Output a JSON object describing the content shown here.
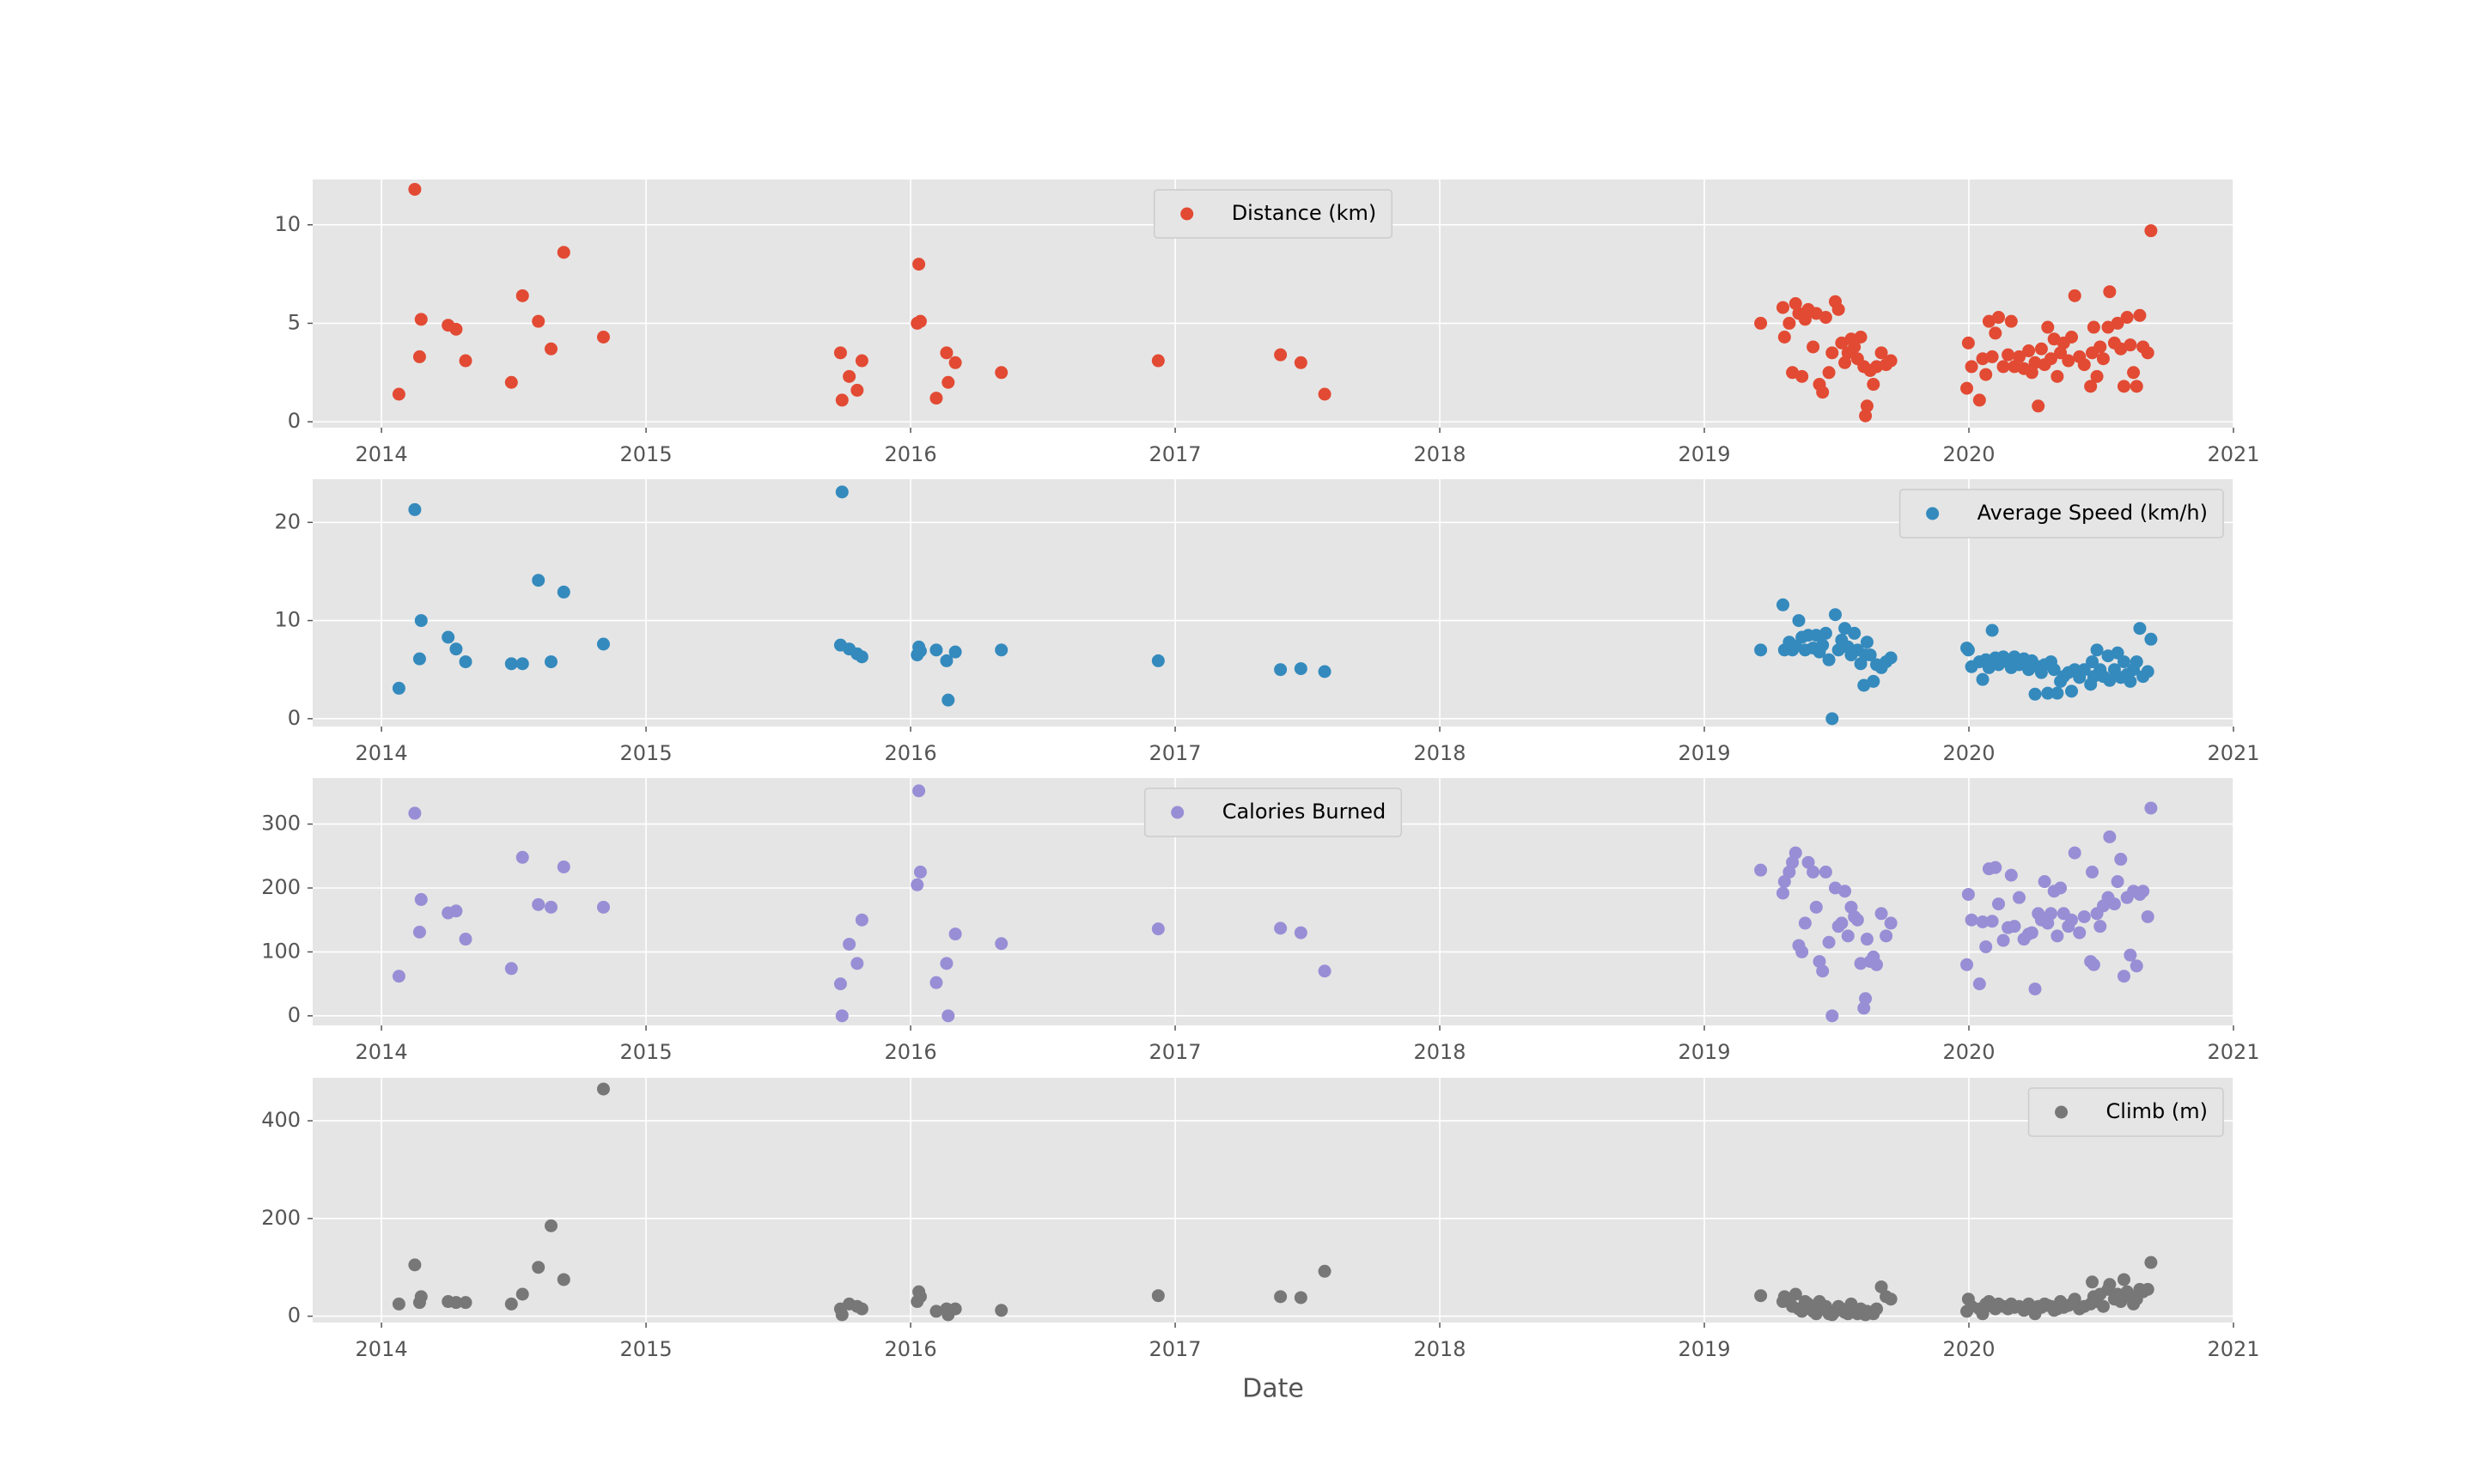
{
  "chart_data": [
    {
      "type": "scatter",
      "xlim": [
        2013.74,
        2021.0
      ],
      "xticks": [
        2014,
        2015,
        2016,
        2017,
        2018,
        2019,
        2020,
        2021
      ],
      "ylim": [
        -0.3,
        12.3
      ],
      "yticks": [
        0,
        5,
        10
      ],
      "grid": true,
      "legend": "upper center",
      "x": [
        2014.066,
        2014.126,
        2014.144,
        2014.15,
        2014.252,
        2014.282,
        2014.318,
        2014.491,
        2014.533,
        2014.593,
        2014.641,
        2014.689,
        2014.839,
        2015.735,
        2015.741,
        2015.768,
        2015.798,
        2015.816,
        2016.025,
        2016.031,
        2016.037,
        2016.097,
        2016.136,
        2016.142,
        2016.169,
        2016.343,
        2016.936,
        2017.398,
        2017.475,
        2017.565,
        2019.213,
        2019.297,
        2019.303,
        2019.321,
        2019.333,
        2019.345,
        2019.357,
        2019.369,
        2019.381,
        2019.393,
        2019.411,
        2019.423,
        2019.435,
        2019.447,
        2019.459,
        2019.471,
        2019.483,
        2019.495,
        2019.507,
        2019.519,
        2019.531,
        2019.543,
        2019.555,
        2019.567,
        2019.579,
        2019.591,
        2019.603,
        2019.609,
        2019.615,
        2019.627,
        2019.639,
        2019.651,
        2019.669,
        2019.687,
        2019.705,
        2019.992,
        2019.998,
        2020.01,
        2020.04,
        2020.052,
        2020.064,
        2020.076,
        2020.088,
        2020.1,
        2020.112,
        2020.13,
        2020.148,
        2020.16,
        2020.172,
        2020.19,
        2020.208,
        2020.226,
        2020.238,
        2020.25,
        2020.262,
        2020.274,
        2020.286,
        2020.298,
        2020.31,
        2020.322,
        2020.334,
        2020.346,
        2020.358,
        2020.376,
        2020.388,
        2020.4,
        2020.418,
        2020.436,
        2020.46,
        2020.466,
        2020.472,
        2020.484,
        2020.496,
        2020.508,
        2020.526,
        2020.532,
        2020.55,
        2020.562,
        2020.574,
        2020.586,
        2020.598,
        2020.61,
        2020.622,
        2020.634,
        2020.646,
        2020.658,
        2020.676,
        2020.688
      ],
      "series": [
        {
          "name": "Distance (km)",
          "color": "#E24A33",
          "values": [
            1.4,
            11.8,
            3.3,
            5.2,
            4.9,
            4.7,
            3.1,
            2.0,
            6.4,
            5.1,
            3.7,
            8.6,
            4.3,
            3.5,
            1.1,
            2.3,
            1.6,
            3.1,
            5.0,
            8.0,
            5.1,
            1.2,
            3.5,
            2.0,
            3.0,
            2.5,
            3.1,
            3.4,
            3.0,
            1.4,
            5.0,
            5.8,
            4.3,
            5.0,
            2.5,
            6.0,
            5.5,
            2.3,
            5.2,
            5.7,
            3.8,
            5.5,
            1.9,
            1.5,
            5.3,
            2.5,
            3.5,
            6.1,
            5.7,
            4.0,
            3.0,
            3.5,
            4.2,
            3.8,
            3.2,
            4.3,
            2.8,
            0.3,
            0.8,
            2.6,
            1.9,
            2.8,
            3.5,
            2.9,
            3.1,
            1.7,
            4.0,
            2.8,
            1.1,
            3.2,
            2.4,
            5.1,
            3.3,
            4.5,
            5.3,
            2.8,
            3.4,
            5.1,
            2.8,
            3.3,
            2.7,
            3.6,
            2.5,
            3.0,
            0.8,
            3.7,
            2.9,
            4.8,
            3.2,
            4.2,
            2.3,
            3.5,
            4.0,
            3.1,
            4.3,
            6.4,
            3.3,
            2.9,
            1.8,
            3.5,
            4.8,
            2.3,
            3.8,
            3.2,
            4.8,
            6.6,
            4.0,
            5.0,
            3.7,
            1.8,
            5.3,
            3.9,
            2.5,
            1.8,
            5.4,
            3.8,
            3.5,
            9.7
          ]
        }
      ]
    },
    {
      "type": "scatter",
      "xlim": [
        2013.74,
        2021.0
      ],
      "xticks": [
        2014,
        2015,
        2016,
        2017,
        2018,
        2019,
        2020,
        2021
      ],
      "ylim": [
        -0.8,
        24.4
      ],
      "yticks": [
        0,
        10,
        20
      ],
      "grid": true,
      "legend": "upper right",
      "x": [
        2014.066,
        2014.126,
        2014.144,
        2014.15,
        2014.252,
        2014.282,
        2014.318,
        2014.491,
        2014.533,
        2014.593,
        2014.641,
        2014.689,
        2014.839,
        2015.735,
        2015.741,
        2015.768,
        2015.798,
        2015.816,
        2016.025,
        2016.031,
        2016.037,
        2016.097,
        2016.136,
        2016.142,
        2016.169,
        2016.343,
        2016.936,
        2017.398,
        2017.475,
        2017.565,
        2019.213,
        2019.297,
        2019.303,
        2019.321,
        2019.333,
        2019.345,
        2019.357,
        2019.369,
        2019.381,
        2019.393,
        2019.411,
        2019.423,
        2019.435,
        2019.447,
        2019.459,
        2019.471,
        2019.483,
        2019.495,
        2019.507,
        2019.519,
        2019.531,
        2019.543,
        2019.555,
        2019.567,
        2019.579,
        2019.591,
        2019.603,
        2019.609,
        2019.615,
        2019.627,
        2019.639,
        2019.651,
        2019.669,
        2019.687,
        2019.705,
        2019.992,
        2019.998,
        2020.01,
        2020.04,
        2020.052,
        2020.064,
        2020.076,
        2020.088,
        2020.1,
        2020.112,
        2020.13,
        2020.148,
        2020.16,
        2020.172,
        2020.19,
        2020.208,
        2020.226,
        2020.238,
        2020.25,
        2020.262,
        2020.274,
        2020.286,
        2020.298,
        2020.31,
        2020.322,
        2020.334,
        2020.346,
        2020.358,
        2020.376,
        2020.388,
        2020.4,
        2020.418,
        2020.436,
        2020.46,
        2020.466,
        2020.472,
        2020.484,
        2020.496,
        2020.508,
        2020.526,
        2020.532,
        2020.55,
        2020.562,
        2020.574,
        2020.586,
        2020.598,
        2020.61,
        2020.622,
        2020.634,
        2020.646,
        2020.658,
        2020.676,
        2020.688
      ],
      "series": [
        {
          "name": "Average Speed (km/h)",
          "color": "#348ABD",
          "values": [
            3.1,
            21.3,
            6.1,
            10.0,
            8.3,
            7.1,
            5.8,
            5.6,
            5.6,
            14.1,
            5.8,
            12.9,
            7.6,
            7.5,
            23.1,
            7.1,
            6.6,
            6.3,
            6.5,
            7.3,
            6.9,
            7.0,
            5.9,
            1.9,
            6.8,
            7.0,
            5.9,
            5.0,
            5.1,
            4.8,
            7.0,
            11.6,
            7.0,
            7.8,
            7.0,
            7.4,
            10.0,
            8.3,
            7.0,
            8.5,
            7.2,
            8.5,
            6.8,
            7.5,
            8.7,
            6.0,
            0.0,
            10.6,
            7.0,
            8.0,
            9.2,
            7.3,
            6.5,
            8.7,
            7.0,
            5.6,
            3.4,
            6.5,
            7.8,
            6.5,
            3.8,
            5.5,
            5.2,
            5.8,
            6.2,
            7.2,
            7.0,
            5.3,
            5.8,
            4.0,
            6.0,
            5.2,
            9.0,
            6.2,
            5.5,
            6.3,
            5.8,
            5.2,
            6.3,
            5.5,
            6.1,
            5.0,
            5.9,
            2.5,
            5.3,
            4.7,
            5.5,
            2.6,
            5.8,
            5.0,
            2.6,
            3.8,
            4.3,
            4.7,
            2.8,
            5.0,
            4.2,
            5.0,
            3.5,
            5.8,
            4.3,
            7.0,
            5.0,
            4.3,
            6.4,
            3.9,
            5.0,
            6.7,
            4.2,
            5.8,
            4.5,
            3.8,
            5.0,
            5.8,
            9.2,
            4.3,
            4.8,
            8.1
          ]
        }
      ]
    },
    {
      "type": "scatter",
      "xlim": [
        2013.74,
        2021.0
      ],
      "xticks": [
        2014,
        2015,
        2016,
        2017,
        2018,
        2019,
        2020,
        2021
      ],
      "ylim": [
        -15,
        372
      ],
      "yticks": [
        0,
        100,
        200,
        300
      ],
      "grid": true,
      "legend": "upper center",
      "x": [
        2014.066,
        2014.126,
        2014.144,
        2014.15,
        2014.252,
        2014.282,
        2014.318,
        2014.491,
        2014.533,
        2014.593,
        2014.641,
        2014.689,
        2014.839,
        2015.735,
        2015.741,
        2015.768,
        2015.798,
        2015.816,
        2016.025,
        2016.031,
        2016.037,
        2016.097,
        2016.136,
        2016.142,
        2016.169,
        2016.343,
        2016.936,
        2017.398,
        2017.475,
        2017.565,
        2019.213,
        2019.297,
        2019.303,
        2019.321,
        2019.333,
        2019.345,
        2019.357,
        2019.369,
        2019.381,
        2019.393,
        2019.411,
        2019.423,
        2019.435,
        2019.447,
        2019.459,
        2019.471,
        2019.483,
        2019.495,
        2019.507,
        2019.519,
        2019.531,
        2019.543,
        2019.555,
        2019.567,
        2019.579,
        2019.591,
        2019.603,
        2019.609,
        2019.615,
        2019.627,
        2019.639,
        2019.651,
        2019.669,
        2019.687,
        2019.705,
        2019.992,
        2019.998,
        2020.01,
        2020.04,
        2020.052,
        2020.064,
        2020.076,
        2020.088,
        2020.1,
        2020.112,
        2020.13,
        2020.148,
        2020.16,
        2020.172,
        2020.19,
        2020.208,
        2020.226,
        2020.238,
        2020.25,
        2020.262,
        2020.274,
        2020.286,
        2020.298,
        2020.31,
        2020.322,
        2020.334,
        2020.346,
        2020.358,
        2020.376,
        2020.388,
        2020.4,
        2020.418,
        2020.436,
        2020.46,
        2020.466,
        2020.472,
        2020.484,
        2020.496,
        2020.508,
        2020.526,
        2020.532,
        2020.55,
        2020.562,
        2020.574,
        2020.586,
        2020.598,
        2020.61,
        2020.622,
        2020.634,
        2020.646,
        2020.658,
        2020.676,
        2020.688
      ],
      "series": [
        {
          "name": "Calories Burned",
          "color": "#988ED5",
          "values": [
            62,
            317,
            131,
            182,
            161,
            164,
            120,
            74,
            248,
            174,
            170,
            233,
            170,
            50,
            0,
            112,
            82,
            150,
            205,
            352,
            225,
            52,
            82,
            0,
            128,
            113,
            136,
            137,
            130,
            70,
            228,
            192,
            210,
            225,
            240,
            255,
            110,
            100,
            145,
            240,
            225,
            170,
            85,
            70,
            225,
            115,
            0,
            200,
            140,
            145,
            195,
            125,
            170,
            155,
            150,
            82,
            12,
            27,
            120,
            85,
            92,
            80,
            160,
            125,
            145,
            80,
            190,
            150,
            50,
            147,
            108,
            230,
            148,
            232,
            175,
            118,
            138,
            220,
            140,
            185,
            120,
            128,
            130,
            42,
            160,
            150,
            210,
            145,
            160,
            195,
            125,
            200,
            160,
            140,
            150,
            255,
            130,
            155,
            85,
            225,
            80,
            160,
            140,
            172,
            185,
            280,
            175,
            210,
            245,
            62,
            185,
            95,
            195,
            78,
            190,
            195,
            155,
            325
          ]
        }
      ]
    },
    {
      "type": "scatter",
      "xlim": [
        2013.74,
        2021.0
      ],
      "xticks": [
        2014,
        2015,
        2016,
        2017,
        2018,
        2019,
        2020,
        2021
      ],
      "ylim": [
        -13,
        488
      ],
      "yticks": [
        0,
        200,
        400
      ],
      "grid": true,
      "legend": "upper right",
      "xlabel": "Date",
      "x": [
        2014.066,
        2014.126,
        2014.144,
        2014.15,
        2014.252,
        2014.282,
        2014.318,
        2014.491,
        2014.533,
        2014.593,
        2014.641,
        2014.689,
        2014.839,
        2015.735,
        2015.741,
        2015.768,
        2015.798,
        2015.816,
        2016.025,
        2016.031,
        2016.037,
        2016.097,
        2016.136,
        2016.142,
        2016.169,
        2016.343,
        2016.936,
        2017.398,
        2017.475,
        2017.565,
        2019.213,
        2019.297,
        2019.303,
        2019.321,
        2019.333,
        2019.345,
        2019.357,
        2019.369,
        2019.381,
        2019.393,
        2019.411,
        2019.423,
        2019.435,
        2019.447,
        2019.459,
        2019.471,
        2019.483,
        2019.495,
        2019.507,
        2019.519,
        2019.531,
        2019.543,
        2019.555,
        2019.567,
        2019.579,
        2019.591,
        2019.603,
        2019.609,
        2019.615,
        2019.627,
        2019.639,
        2019.651,
        2019.669,
        2019.687,
        2019.705,
        2019.992,
        2019.998,
        2020.01,
        2020.04,
        2020.052,
        2020.064,
        2020.076,
        2020.088,
        2020.1,
        2020.112,
        2020.13,
        2020.148,
        2020.16,
        2020.172,
        2020.19,
        2020.208,
        2020.226,
        2020.238,
        2020.25,
        2020.262,
        2020.274,
        2020.286,
        2020.298,
        2020.31,
        2020.322,
        2020.334,
        2020.346,
        2020.358,
        2020.376,
        2020.388,
        2020.4,
        2020.418,
        2020.436,
        2020.46,
        2020.466,
        2020.472,
        2020.484,
        2020.496,
        2020.508,
        2020.526,
        2020.532,
        2020.55,
        2020.562,
        2020.574,
        2020.586,
        2020.598,
        2020.61,
        2020.622,
        2020.634,
        2020.646,
        2020.658,
        2020.676,
        2020.688
      ],
      "series": [
        {
          "name": "Climb (m)",
          "color": "#777777",
          "values": [
            25,
            105,
            28,
            40,
            30,
            28,
            28,
            25,
            45,
            100,
            185,
            75,
            465,
            15,
            3,
            25,
            20,
            15,
            30,
            50,
            40,
            10,
            15,
            3,
            15,
            12,
            42,
            40,
            38,
            92,
            42,
            30,
            40,
            35,
            20,
            45,
            15,
            10,
            30,
            25,
            10,
            5,
            30,
            15,
            20,
            5,
            3,
            10,
            20,
            15,
            8,
            5,
            25,
            12,
            5,
            15,
            5,
            3,
            10,
            8,
            5,
            15,
            60,
            40,
            35,
            10,
            35,
            20,
            15,
            5,
            25,
            30,
            20,
            15,
            25,
            20,
            15,
            25,
            18,
            20,
            12,
            25,
            15,
            5,
            20,
            18,
            25,
            22,
            20,
            12,
            15,
            30,
            18,
            22,
            25,
            35,
            15,
            20,
            25,
            70,
            40,
            30,
            45,
            20,
            55,
            65,
            35,
            45,
            30,
            75,
            50,
            40,
            25,
            35,
            55,
            50,
            55,
            110
          ]
        }
      ]
    }
  ]
}
